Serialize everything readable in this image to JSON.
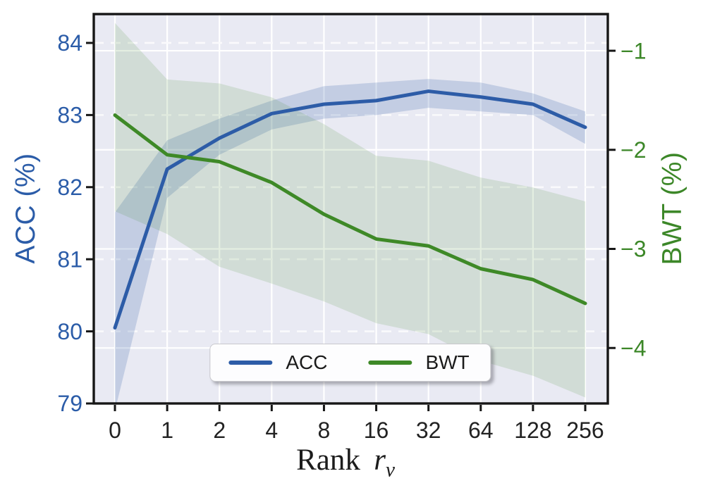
{
  "chart_data": {
    "type": "line",
    "x_categories": [
      "0",
      "1",
      "2",
      "4",
      "8",
      "16",
      "32",
      "64",
      "128",
      "256"
    ],
    "xlabel_parts": {
      "prefix": "Rank",
      "variable": "r",
      "subscript": "v"
    },
    "left_axis": {
      "label": "ACC (%)",
      "color": "#2b5ca8",
      "ticks": [
        84,
        83,
        82,
        81,
        80,
        79
      ],
      "ylim": [
        79,
        84.4
      ],
      "gridline_style": "dashed"
    },
    "right_axis": {
      "label": "BWT (%)",
      "color": "#3c8728",
      "ticks": [
        -1,
        -2,
        -3,
        -4
      ],
      "ylim": [
        -4.56,
        -0.63
      ],
      "gridline_style": "solid"
    },
    "series": [
      {
        "name": "ACC",
        "axis": "left",
        "color": "#2d5ca7",
        "band_color": "#2d5ca7",
        "band_opacity": 0.2,
        "values": [
          80.05,
          82.25,
          82.68,
          83.02,
          83.15,
          83.2,
          83.33,
          83.25,
          83.15,
          82.83
        ],
        "band_high": [
          81.65,
          82.65,
          82.95,
          83.2,
          83.4,
          83.45,
          83.5,
          83.45,
          83.3,
          83.05
        ],
        "band_low": [
          78.9,
          81.85,
          82.45,
          82.8,
          82.95,
          83.0,
          83.1,
          83.05,
          83.0,
          82.6
        ]
      },
      {
        "name": "BWT",
        "axis": "right",
        "color": "#3e8927",
        "band_color": "#3e8927",
        "band_opacity": 0.14,
        "values": [
          -1.65,
          -2.05,
          -2.12,
          -2.33,
          -2.65,
          -2.9,
          -2.97,
          -3.2,
          -3.31,
          -3.55
        ],
        "band_high": [
          -0.72,
          -1.29,
          -1.33,
          -1.47,
          -1.74,
          -2.06,
          -2.11,
          -2.28,
          -2.38,
          -2.52
        ],
        "band_low": [
          -2.62,
          -2.85,
          -3.18,
          -3.35,
          -3.53,
          -3.75,
          -3.86,
          -4.13,
          -4.28,
          -4.5
        ]
      }
    ],
    "legend": {
      "position": "lower center",
      "entries": [
        "ACC",
        "BWT"
      ]
    },
    "grid": true,
    "colors": {
      "plot_background": "#e9eaf3",
      "grid_solid": "#ffffff",
      "grid_dashed": "#fafafc",
      "spine": "#161616",
      "x_tick_label": "#222222"
    }
  }
}
